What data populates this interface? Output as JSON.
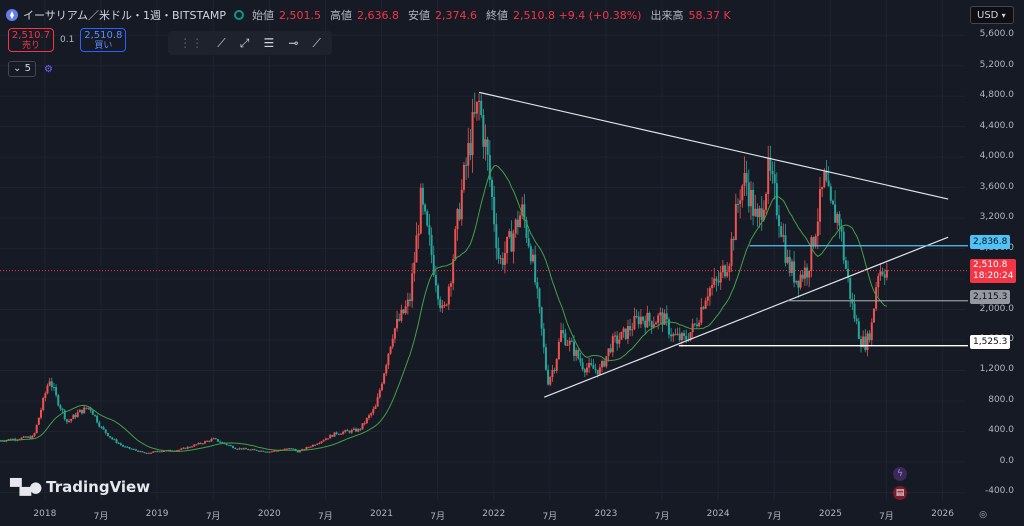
{
  "header": {
    "symbol": "イーサリアム／米ドル・1週・BITSTAMP",
    "open_label": "始値",
    "open": "2,501.5",
    "high_label": "高値",
    "high": "2,636.8",
    "low_label": "安値",
    "low": "2,374.6",
    "close_label": "終値",
    "close": "2,510.8 +9.4 (+0.38%)",
    "volume_label": "出来高",
    "volume": "58.37 K"
  },
  "trade": {
    "sell_price": "2,510.7",
    "sell_label": "売り",
    "spread": "0.1",
    "buy_price": "2,510.8",
    "buy_label": "買い"
  },
  "indicator": {
    "label": "5"
  },
  "currency": "USD",
  "logo": "TradingView",
  "tags": {
    "resistance": "2,836.8",
    "current_price": "2,510.8",
    "countdown": "18:20:24",
    "support_mid": "2,115.3",
    "support_low": "1,525.3"
  },
  "colors": {
    "background": "#161a25",
    "up": "#ef5350",
    "down": "#26a69a",
    "ma": "#43a047",
    "resistance_line": "#4fc3f7",
    "price_tag": "#f23645"
  },
  "chart_data": {
    "type": "candlestick",
    "title": "イーサリアム／米ドル・1週・BITSTAMP",
    "y_ticks": [
      "5,600.0",
      "5,200.0",
      "4,800.0",
      "4,400.0",
      "4,000.0",
      "3,600.0",
      "3,200.0",
      "2,800.0",
      "2,400.0",
      "2,000.0",
      "1,600.0",
      "1,200.0",
      "800.0",
      "400.0",
      "0.0",
      "-400.0"
    ],
    "y_tick_values": [
      5600,
      5200,
      4800,
      4400,
      4000,
      3600,
      3200,
      2800,
      2400,
      2000,
      1600,
      1200,
      800,
      400,
      0,
      -400
    ],
    "x_ticks": [
      "2018",
      "7月",
      "2019",
      "7月",
      "2020",
      "7月",
      "2021",
      "7月",
      "2022",
      "7月",
      "2023",
      "7月",
      "2024",
      "7月",
      "2025",
      "7月",
      "2026"
    ],
    "x_tick_dates": [
      2018.0,
      2018.5,
      2019.0,
      2019.5,
      2020.0,
      2020.5,
      2021.0,
      2021.5,
      2022.0,
      2022.5,
      2023.0,
      2023.5,
      2024.0,
      2024.5,
      2025.0,
      2025.5,
      2026.0
    ],
    "ylim": [
      -500,
      5800
    ],
    "xlim": [
      2017.6,
      2026.2
    ],
    "price_series_anchors": [
      [
        2017.6,
        280
      ],
      [
        2017.9,
        330
      ],
      [
        2018.04,
        1100
      ],
      [
        2018.1,
        850
      ],
      [
        2018.2,
        520
      ],
      [
        2018.3,
        650
      ],
      [
        2018.4,
        720
      ],
      [
        2018.5,
        450
      ],
      [
        2018.6,
        300
      ],
      [
        2018.7,
        200
      ],
      [
        2018.9,
        110
      ],
      [
        2019.0,
        140
      ],
      [
        2019.2,
        160
      ],
      [
        2019.4,
        250
      ],
      [
        2019.5,
        300
      ],
      [
        2019.7,
        180
      ],
      [
        2019.9,
        150
      ],
      [
        2020.0,
        135
      ],
      [
        2020.2,
        180
      ],
      [
        2020.25,
        130
      ],
      [
        2020.4,
        230
      ],
      [
        2020.6,
        380
      ],
      [
        2020.8,
        420
      ],
      [
        2020.95,
        720
      ],
      [
        2021.1,
        1700
      ],
      [
        2021.25,
        2100
      ],
      [
        2021.35,
        3400
      ],
      [
        2021.45,
        2700
      ],
      [
        2021.55,
        1900
      ],
      [
        2021.62,
        2500
      ],
      [
        2021.7,
        3400
      ],
      [
        2021.8,
        4300
      ],
      [
        2021.87,
        4700
      ],
      [
        2021.95,
        3900
      ],
      [
        2022.05,
        2600
      ],
      [
        2022.15,
        2900
      ],
      [
        2022.25,
        3300
      ],
      [
        2022.33,
        2800
      ],
      [
        2022.42,
        1800
      ],
      [
        2022.48,
        1050
      ],
      [
        2022.55,
        1300
      ],
      [
        2022.6,
        1700
      ],
      [
        2022.7,
        1500
      ],
      [
        2022.8,
        1250
      ],
      [
        2022.95,
        1200
      ],
      [
        2023.05,
        1550
      ],
      [
        2023.15,
        1650
      ],
      [
        2023.3,
        1900
      ],
      [
        2023.4,
        1850
      ],
      [
        2023.5,
        1900
      ],
      [
        2023.6,
        1650
      ],
      [
        2023.7,
        1600
      ],
      [
        2023.8,
        1800
      ],
      [
        2023.9,
        2250
      ],
      [
        2024.0,
        2350
      ],
      [
        2024.1,
        2700
      ],
      [
        2024.2,
        3600
      ],
      [
        2024.25,
        3700
      ],
      [
        2024.35,
        3100
      ],
      [
        2024.45,
        3800
      ],
      [
        2024.55,
        3200
      ],
      [
        2024.62,
        2600
      ],
      [
        2024.7,
        2400
      ],
      [
        2024.8,
        2550
      ],
      [
        2024.87,
        3100
      ],
      [
        2024.95,
        3700
      ],
      [
        2025.0,
        3300
      ],
      [
        2025.08,
        3200
      ],
      [
        2025.12,
        2700
      ],
      [
        2025.2,
        2000
      ],
      [
        2025.27,
        1600
      ],
      [
        2025.32,
        1550
      ],
      [
        2025.37,
        1800
      ],
      [
        2025.42,
        2500
      ],
      [
        2025.47,
        2550
      ],
      [
        2025.52,
        2500
      ]
    ],
    "trendlines": [
      {
        "from": [
          2021.87,
          4850
        ],
        "to": [
          2026.05,
          3450
        ]
      },
      {
        "from": [
          2022.45,
          850
        ],
        "to": [
          2026.05,
          2950
        ]
      }
    ],
    "horizontal_levels": [
      {
        "value": 2836.8,
        "from": 2024.28,
        "color": "#4fc3f7"
      },
      {
        "value": 2115.3,
        "from": 2024.62,
        "color": "#9598a1"
      },
      {
        "value": 1525.3,
        "from": 2023.65,
        "color": "#ffffff"
      }
    ],
    "current_price": 2510.8
  }
}
